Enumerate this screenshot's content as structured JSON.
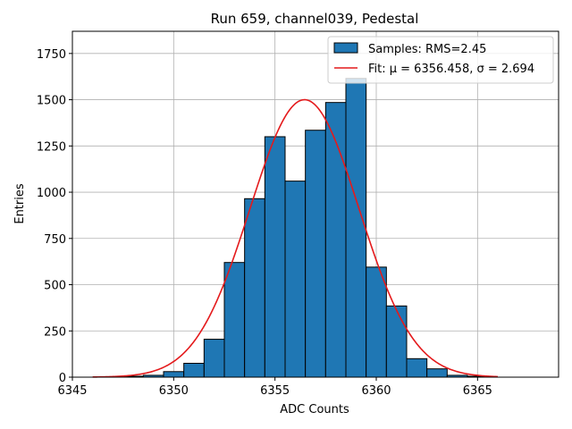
{
  "chart_data": {
    "type": "bar",
    "title": "Run 659, channel039, Pedestal",
    "xlabel": "ADC Counts",
    "ylabel": "Entries",
    "xlim": [
      6345,
      6369
    ],
    "ylim": [
      0,
      1870
    ],
    "xticks": [
      6345,
      6350,
      6355,
      6360,
      6365
    ],
    "yticks": [
      0,
      250,
      500,
      750,
      1000,
      1250,
      1500,
      1750
    ],
    "grid": true,
    "legend_position": "top-right",
    "bin_width": 1,
    "bins": [
      {
        "x": 6348,
        "value": 5
      },
      {
        "x": 6349,
        "value": 10
      },
      {
        "x": 6350,
        "value": 30
      },
      {
        "x": 6351,
        "value": 75
      },
      {
        "x": 6352,
        "value": 205
      },
      {
        "x": 6353,
        "value": 620
      },
      {
        "x": 6354,
        "value": 965
      },
      {
        "x": 6355,
        "value": 1300
      },
      {
        "x": 6356,
        "value": 1060
      },
      {
        "x": 6357,
        "value": 1335
      },
      {
        "x": 6358,
        "value": 1485
      },
      {
        "x": 6359,
        "value": 1615
      },
      {
        "x": 6360,
        "value": 595
      },
      {
        "x": 6361,
        "value": 385
      },
      {
        "x": 6362,
        "value": 100
      },
      {
        "x": 6363,
        "value": 45
      },
      {
        "x": 6364,
        "value": 10
      },
      {
        "x": 6365,
        "value": 5
      }
    ],
    "series": [
      {
        "name": "Samples: RMS=2.45",
        "kind": "histogram",
        "color": "#1f77b4"
      },
      {
        "name": "Fit: μ = 6356.458, σ = 2.694",
        "kind": "gaussian",
        "color": "#e41a1c",
        "mu": 6356.458,
        "sigma": 2.694,
        "amplitude": 1500,
        "x_range": [
          6346,
          6366
        ]
      }
    ]
  }
}
